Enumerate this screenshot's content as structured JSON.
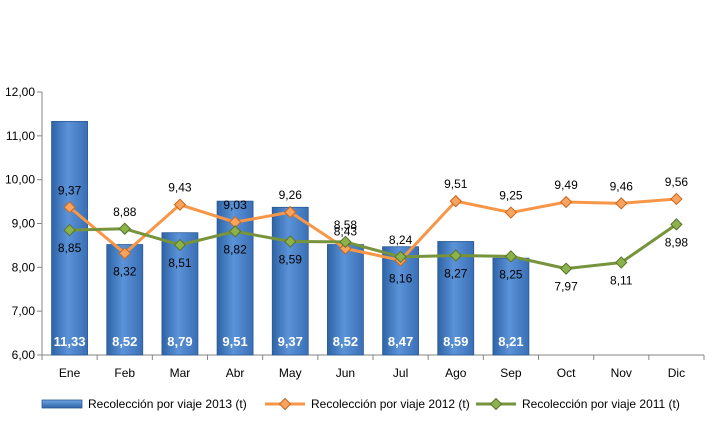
{
  "chart_data": {
    "type": "bar",
    "categories": [
      "Ene",
      "Feb",
      "Mar",
      "Abr",
      "May",
      "Jun",
      "Jul",
      "Ago",
      "Sep",
      "Oct",
      "Nov",
      "Dic"
    ],
    "ylim": [
      6,
      12
    ],
    "yticks": [
      "6,00",
      "7,00",
      "8,00",
      "9,00",
      "10,00",
      "11,00",
      "12,00"
    ],
    "grid": false,
    "legend_position": "bottom",
    "series": [
      {
        "name": "Recolección por viaje 2013 (t)",
        "kind": "bar",
        "color": "#4F81BD",
        "values": [
          11.33,
          8.52,
          8.79,
          9.51,
          9.37,
          8.52,
          8.47,
          8.59,
          8.21,
          null,
          null,
          null
        ],
        "labels": [
          "11,33",
          "8,52",
          "8,79",
          "9,51",
          "9,37",
          "8,52",
          "8,47",
          "8,59",
          "8,21",
          "",
          "",
          ""
        ]
      },
      {
        "name": "Recolección por viaje 2012 (t)",
        "kind": "line",
        "color": "#F79646",
        "values": [
          9.37,
          8.32,
          9.43,
          9.03,
          9.26,
          8.43,
          8.16,
          9.51,
          9.25,
          9.49,
          9.46,
          9.56
        ],
        "labels": [
          "9,37",
          "8,32",
          "9,43",
          "9,03",
          "9,26",
          "8,43",
          "8,16",
          "9,51",
          "9,25",
          "9,49",
          "9,46",
          "9,56"
        ]
      },
      {
        "name": "Recolección por viaje 2011 (t)",
        "kind": "line",
        "color": "#77933C",
        "values": [
          8.85,
          8.88,
          8.51,
          8.82,
          8.59,
          8.58,
          8.24,
          8.27,
          8.25,
          7.97,
          8.11,
          8.98
        ],
        "labels": [
          "8,85",
          "8,88",
          "8,51",
          "8,82",
          "8,59",
          "8,58",
          "8,24",
          "8,27",
          "8,25",
          "7,97",
          "8,11",
          "8,98"
        ]
      }
    ]
  }
}
